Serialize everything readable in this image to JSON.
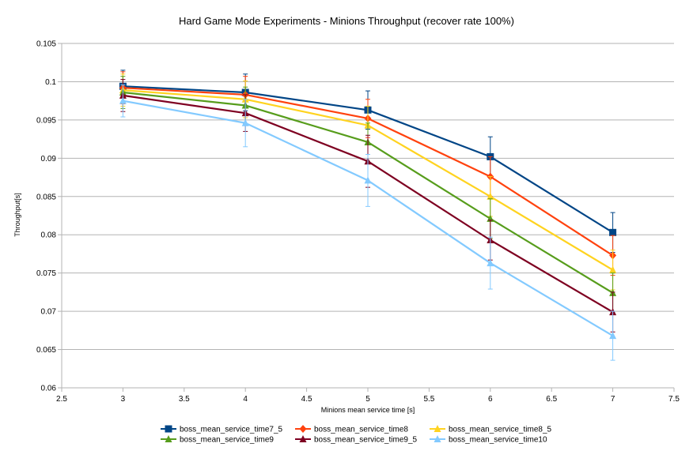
{
  "chart_data": {
    "type": "line",
    "title": "Hard Game Mode Experiments - Minions Throughput (recover rate 100%)",
    "xlabel": "Minions mean service time [s]",
    "ylabel": "Throughput[s]",
    "xlim": [
      2.5,
      7.5
    ],
    "ylim": [
      0.06,
      0.105
    ],
    "x_ticks": [
      "2.5",
      "3",
      "3.5",
      "4",
      "4.5",
      "5",
      "5.5",
      "6",
      "6.5",
      "7",
      "7.5"
    ],
    "y_ticks": [
      "0.06",
      "0.065",
      "0.07",
      "0.075",
      "0.08",
      "0.085",
      "0.09",
      "0.095",
      "0.1",
      "0.105"
    ],
    "grid": "horizontal",
    "legend_position": "bottom",
    "x": [
      3,
      4,
      5,
      6,
      7
    ],
    "series": [
      {
        "name": "boss_mean_service_time7_5",
        "color": "#004586",
        "marker": "square",
        "values": [
          0.0994,
          0.0986,
          0.0963,
          0.0902,
          0.0803
        ],
        "errors": [
          0.0021,
          0.0024,
          0.0025,
          0.0026,
          0.0026
        ]
      },
      {
        "name": "boss_mean_service_time8",
        "color": "#ff420e",
        "marker": "diamond",
        "values": [
          0.0992,
          0.0983,
          0.0952,
          0.0876,
          0.0773
        ],
        "errors": [
          0.0021,
          0.0024,
          0.0025,
          0.0026,
          0.0026
        ]
      },
      {
        "name": "boss_mean_service_time8_5",
        "color": "#ffd320",
        "marker": "triangle",
        "values": [
          0.0989,
          0.0977,
          0.0943,
          0.085,
          0.0754
        ],
        "errors": [
          0.0021,
          0.0024,
          0.0025,
          0.0026,
          0.0026
        ]
      },
      {
        "name": "boss_mean_service_time9",
        "color": "#579d1c",
        "marker": "triangle",
        "values": [
          0.0986,
          0.0969,
          0.0921,
          0.0821,
          0.0724
        ],
        "errors": [
          0.0021,
          0.0024,
          0.0025,
          0.0026,
          0.0026
        ]
      },
      {
        "name": "boss_mean_service_time9_5",
        "color": "#7e0021",
        "marker": "triangle",
        "values": [
          0.0982,
          0.0959,
          0.0896,
          0.0793,
          0.0699
        ],
        "errors": [
          0.0021,
          0.0024,
          0.0034,
          0.0026,
          0.0026
        ]
      },
      {
        "name": "boss_mean_service_time10",
        "color": "#83caff",
        "marker": "triangle",
        "values": [
          0.0975,
          0.0946,
          0.0871,
          0.0763,
          0.0668
        ],
        "errors": [
          0.0021,
          0.0031,
          0.0034,
          0.0034,
          0.0032
        ]
      }
    ]
  }
}
